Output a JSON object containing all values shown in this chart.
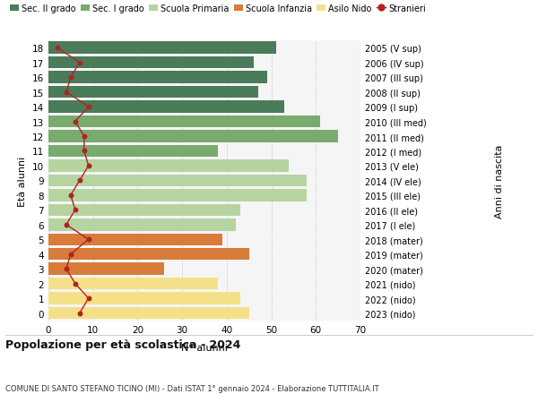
{
  "ages": [
    18,
    17,
    16,
    15,
    14,
    13,
    12,
    11,
    10,
    9,
    8,
    7,
    6,
    5,
    4,
    3,
    2,
    1,
    0
  ],
  "right_labels": [
    "2005 (V sup)",
    "2006 (IV sup)",
    "2007 (III sup)",
    "2008 (II sup)",
    "2009 (I sup)",
    "2010 (III med)",
    "2011 (II med)",
    "2012 (I med)",
    "2013 (V ele)",
    "2014 (IV ele)",
    "2015 (III ele)",
    "2016 (II ele)",
    "2017 (I ele)",
    "2018 (mater)",
    "2019 (mater)",
    "2020 (mater)",
    "2021 (nido)",
    "2022 (nido)",
    "2023 (nido)"
  ],
  "bar_values": [
    51,
    46,
    49,
    47,
    53,
    61,
    65,
    38,
    54,
    58,
    58,
    43,
    42,
    39,
    45,
    26,
    38,
    43,
    45
  ],
  "bar_colors": [
    "#4a7c59",
    "#4a7c59",
    "#4a7c59",
    "#4a7c59",
    "#4a7c59",
    "#7aab6e",
    "#7aab6e",
    "#7aab6e",
    "#b5d4a0",
    "#b5d4a0",
    "#b5d4a0",
    "#b5d4a0",
    "#b5d4a0",
    "#d97b3a",
    "#d97b3a",
    "#d97b3a",
    "#f5e08a",
    "#f5e08a",
    "#f5e08a"
  ],
  "stranieri_values": [
    2,
    7,
    5,
    4,
    9,
    6,
    8,
    8,
    9,
    7,
    5,
    6,
    4,
    9,
    5,
    4,
    6,
    9,
    7
  ],
  "legend_labels": [
    "Sec. II grado",
    "Sec. I grado",
    "Scuola Primaria",
    "Scuola Infanzia",
    "Asilo Nido",
    "Stranieri"
  ],
  "legend_colors": [
    "#4a7c59",
    "#7aab6e",
    "#b5d4a0",
    "#d97b3a",
    "#f5e08a",
    "#b22222"
  ],
  "ylabel_left": "Età alunni",
  "ylabel_right": "Anni di nascita",
  "title": "Popolazione per età scolastica - 2024",
  "subtitle": "COMUNE DI SANTO STEFANO TICINO (MI) - Dati ISTAT 1° gennaio 2024 - Elaborazione TUTTITALIA.IT",
  "xlim": [
    0,
    70
  ],
  "xticks": [
    0,
    10,
    20,
    30,
    40,
    50,
    60,
    70
  ],
  "background_color": "#ffffff",
  "plot_bg_color": "#f5f5f5"
}
